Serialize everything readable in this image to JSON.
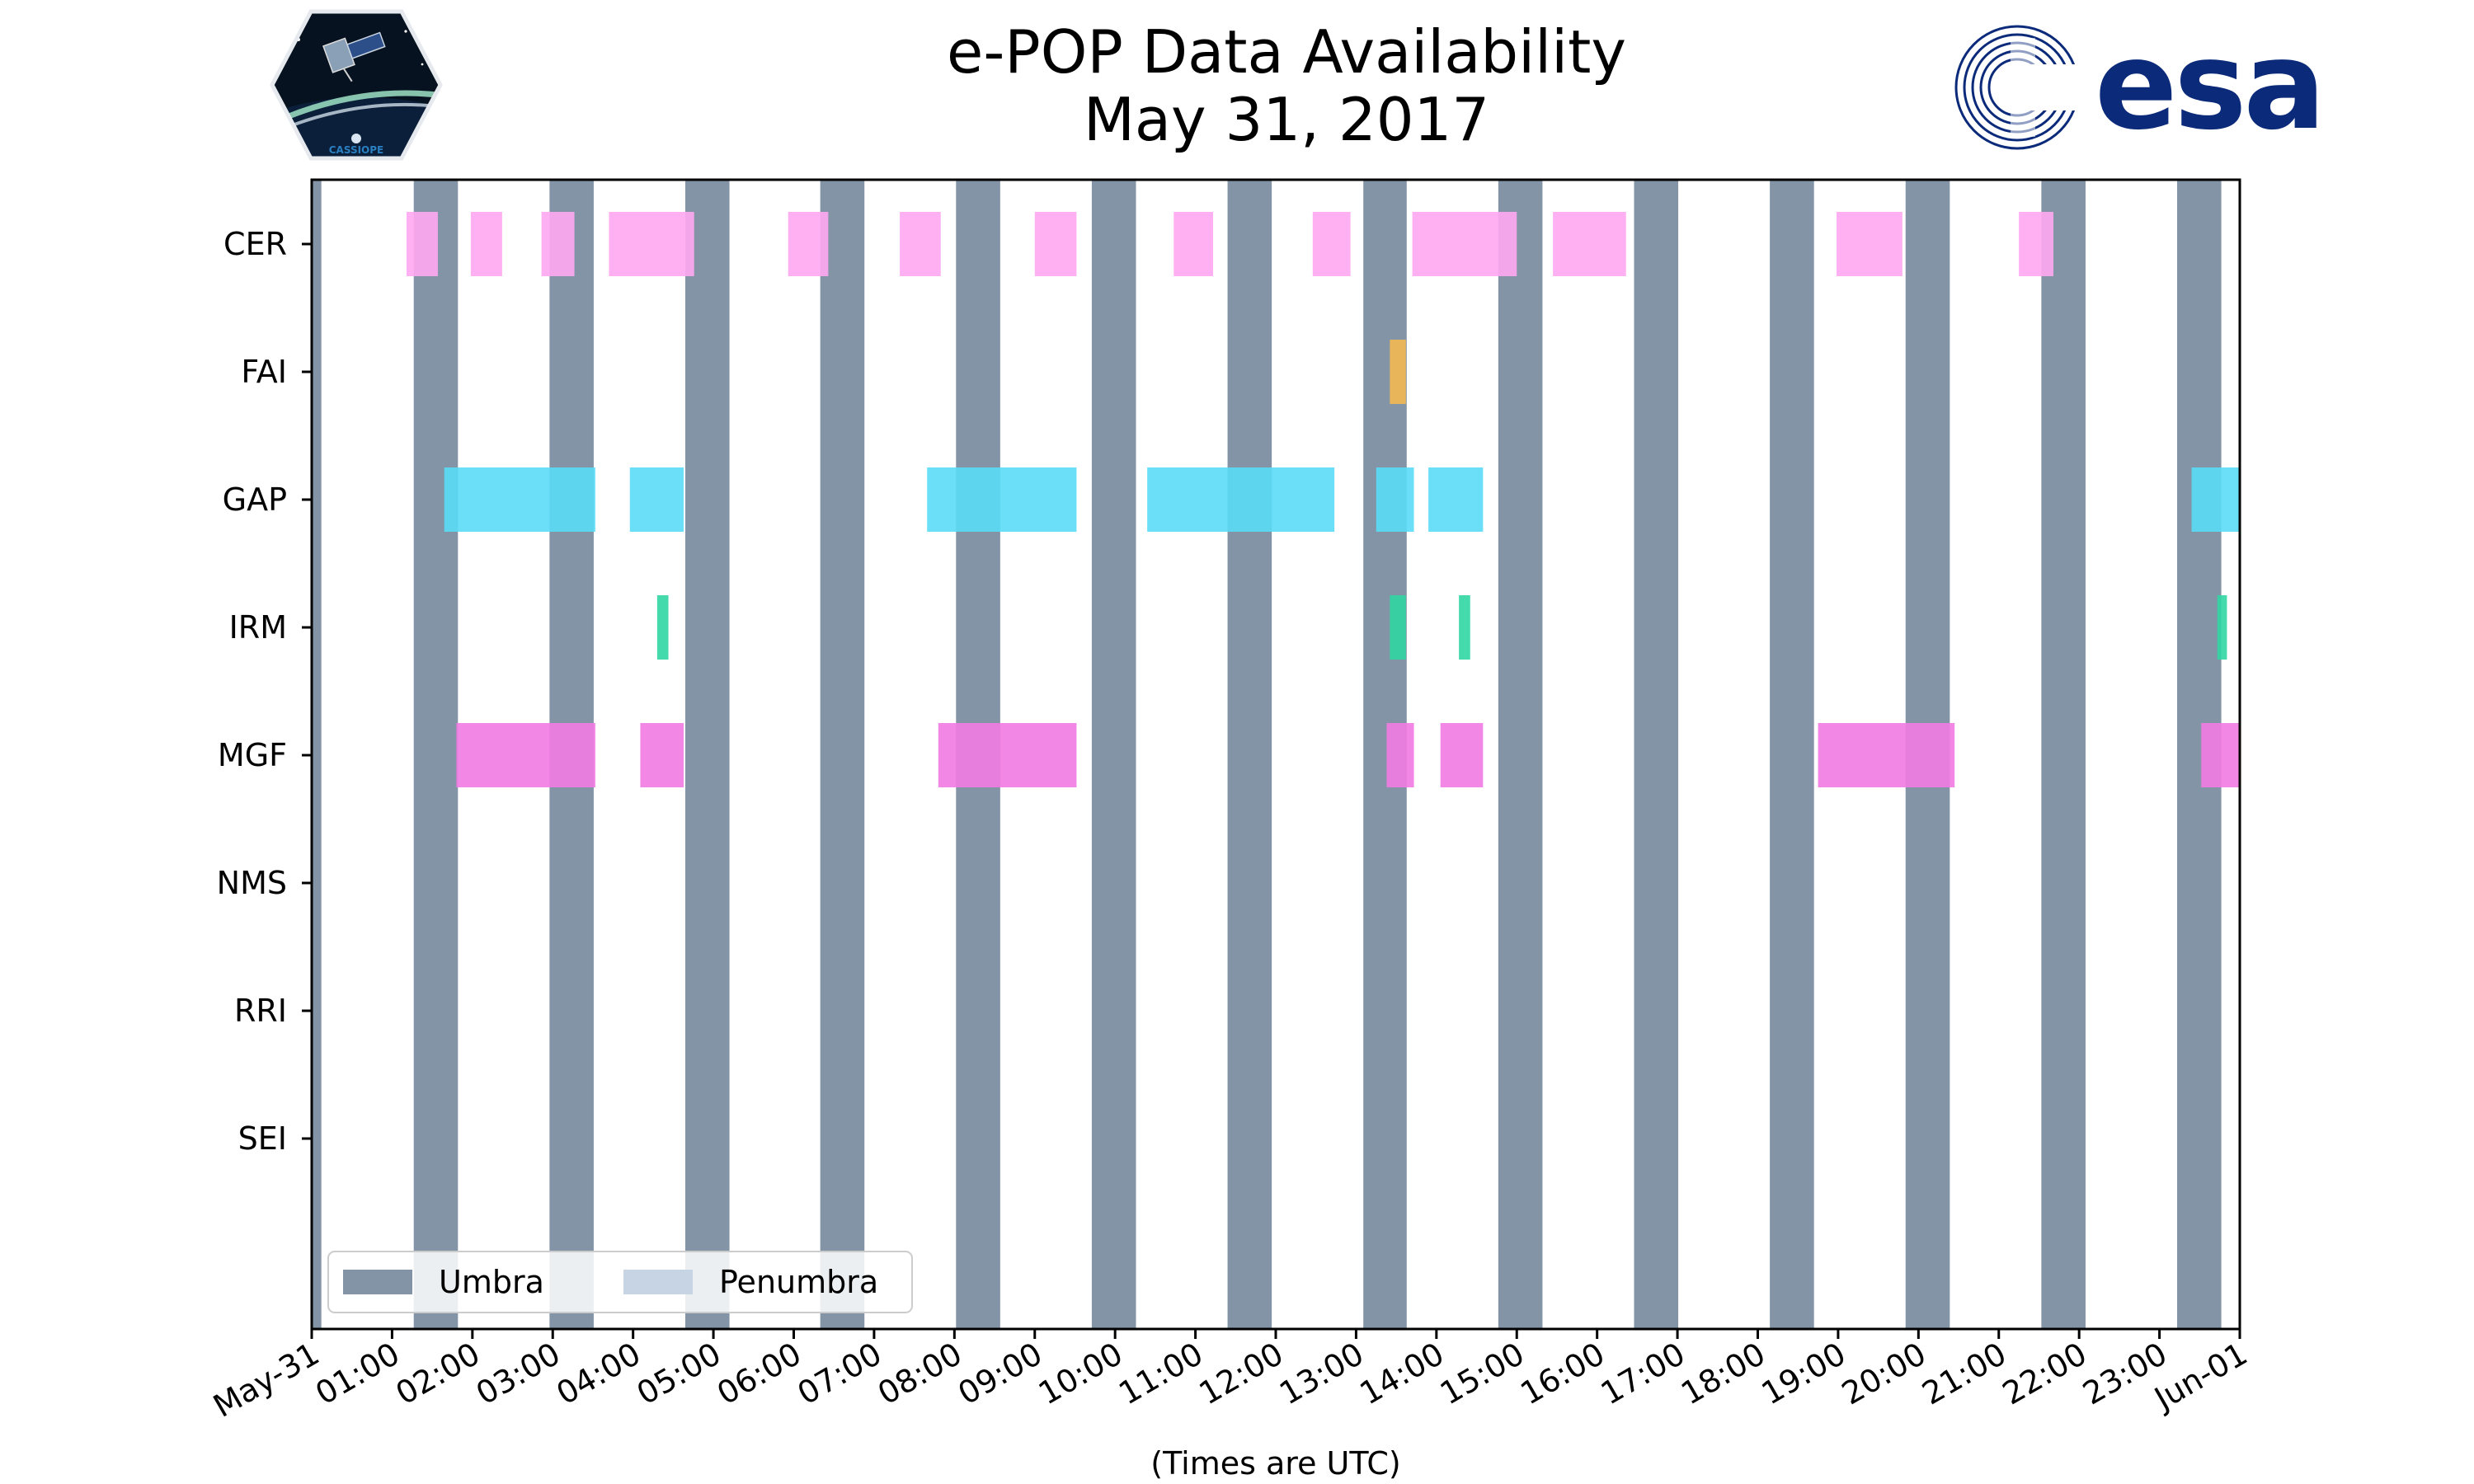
{
  "header": {
    "title": "e-POP Data Availability",
    "subtitle": "May 31, 2017",
    "left_logo_text": "CASSIOPE",
    "right_logo_text": "esa"
  },
  "chart_data": {
    "type": "timeline",
    "title": "e-POP Data Availability",
    "subtitle": "May 31, 2017",
    "xlabel": "(Times are UTC)",
    "xlim_hours": [
      0,
      24
    ],
    "xticks": [
      "May-31",
      "01:00",
      "02:00",
      "03:00",
      "04:00",
      "05:00",
      "06:00",
      "07:00",
      "08:00",
      "09:00",
      "10:00",
      "11:00",
      "12:00",
      "13:00",
      "14:00",
      "15:00",
      "16:00",
      "17:00",
      "18:00",
      "19:00",
      "20:00",
      "21:00",
      "22:00",
      "23:00",
      "Jun-01"
    ],
    "instruments": [
      "CER",
      "FAI",
      "GAP",
      "IRM",
      "MGF",
      "NMS",
      "RRI",
      "SEI"
    ],
    "legend": {
      "location": "lower-left",
      "entries": [
        "Umbra",
        "Penumbra"
      ]
    },
    "colors": {
      "umbra": "#8394a6",
      "penumbra": "#c6d4e3",
      "CER": "#ffa7f2",
      "FAI": "#f3b852",
      "GAP": "#5adcf6",
      "IRM": "#30d6a2",
      "MGF": "#f27ae2"
    },
    "umbra_hours": [
      [
        0.0,
        0.12
      ],
      [
        1.27,
        1.82
      ],
      [
        2.96,
        3.51
      ],
      [
        4.65,
        5.2
      ],
      [
        6.33,
        6.88
      ],
      [
        8.02,
        8.57
      ],
      [
        9.71,
        10.26
      ],
      [
        11.4,
        11.95
      ],
      [
        13.09,
        13.63
      ],
      [
        14.77,
        15.32
      ],
      [
        16.46,
        17.01
      ],
      [
        18.15,
        18.7
      ],
      [
        19.84,
        20.39
      ],
      [
        21.53,
        22.08
      ],
      [
        23.22,
        23.77
      ]
    ],
    "segments": {
      "CER": [
        [
          1.18,
          1.57
        ],
        [
          1.98,
          2.37
        ],
        [
          2.86,
          3.27
        ],
        [
          3.7,
          4.76
        ],
        [
          5.93,
          6.43
        ],
        [
          7.32,
          7.83
        ],
        [
          9.0,
          9.52
        ],
        [
          10.73,
          11.22
        ],
        [
          12.46,
          12.93
        ],
        [
          13.7,
          15.0
        ],
        [
          15.45,
          16.36
        ],
        [
          18.98,
          19.8
        ],
        [
          21.25,
          21.68
        ]
      ],
      "FAI": [
        [
          13.42,
          13.62
        ]
      ],
      "GAP": [
        [
          1.65,
          3.53
        ],
        [
          3.96,
          4.63
        ],
        [
          7.66,
          9.52
        ],
        [
          10.4,
          12.73
        ],
        [
          13.25,
          13.72
        ],
        [
          13.9,
          14.58
        ],
        [
          23.4,
          24.0
        ]
      ],
      "IRM": [
        [
          4.3,
          4.44
        ],
        [
          13.42,
          13.62
        ],
        [
          14.28,
          14.42
        ],
        [
          23.72,
          23.84
        ]
      ],
      "MGF": [
        [
          1.8,
          3.53
        ],
        [
          4.09,
          4.63
        ],
        [
          7.8,
          9.52
        ],
        [
          13.38,
          13.72
        ],
        [
          14.05,
          14.58
        ],
        [
          18.75,
          20.45
        ],
        [
          23.52,
          24.0
        ]
      ],
      "NMS": [],
      "RRI": [],
      "SEI": []
    }
  }
}
